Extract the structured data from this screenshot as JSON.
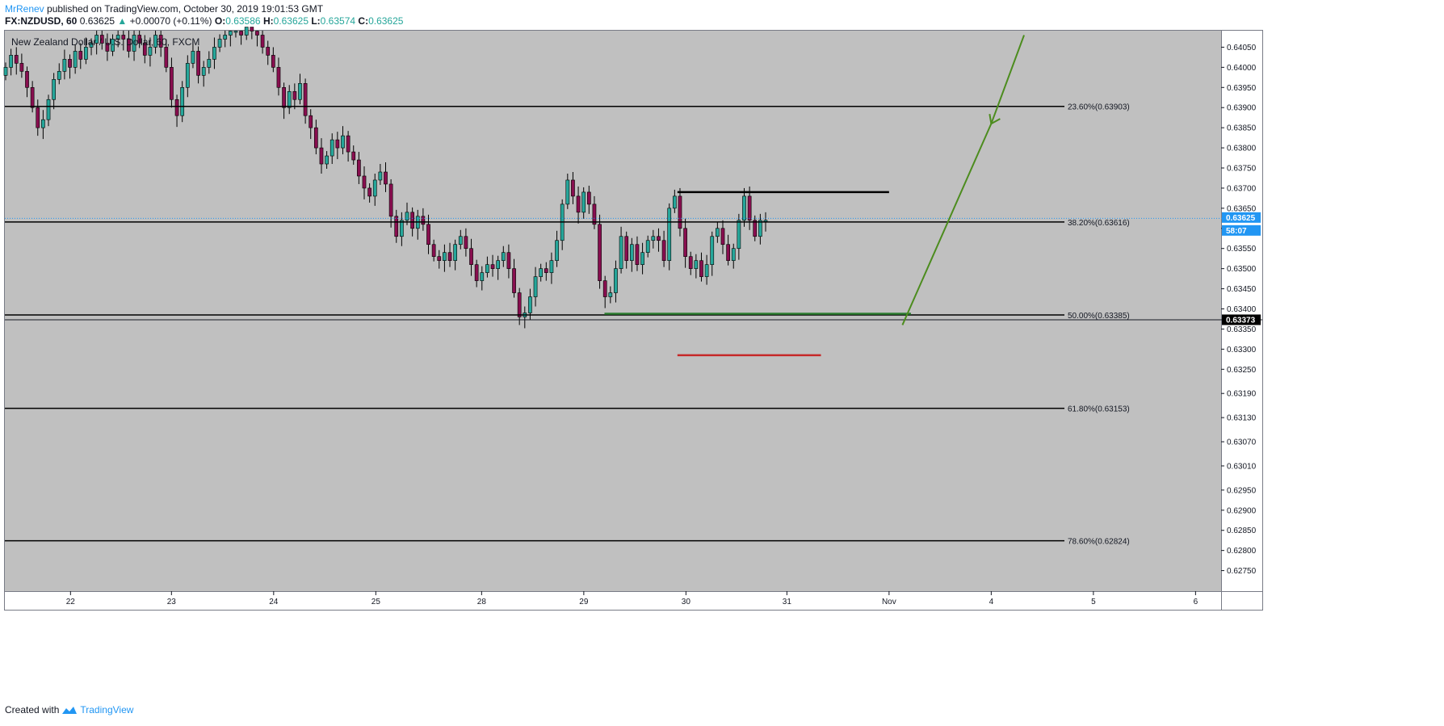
{
  "header": {
    "author": "MrRenev",
    "published": "published on TradingView.com, October 30, 2019 19:01:53 GMT",
    "symbol": "FX:NZDUSD, 60",
    "last": "0.63625",
    "change_arrow": "▲",
    "change": "+0.00070 (+0.11%)",
    "o_label": "O:",
    "o": "0.63586",
    "h_label": "H:",
    "h": "0.63625",
    "l_label": "L:",
    "l": "0.63574",
    "c_label": "C:",
    "c": "0.63625"
  },
  "legend_title": "New Zealand Dollar / U.S. Dollar, 60, FXCM",
  "footer": {
    "created_with": "Created with",
    "brand": "TradingView",
    "logo_icon": "tradingview-logo-icon"
  },
  "colors": {
    "background": "#c0c0c0",
    "up": "#26a69a",
    "down": "#880e4f",
    "fib": "#000000",
    "resistance": "#000000",
    "support": "#2e7d32",
    "stop": "#c62828",
    "projection": "#4c8c1e",
    "price_tag": "#2196f3"
  },
  "chart_data": {
    "type": "candlestick",
    "title": "New Zealand Dollar / U.S. Dollar, 60, FXCM",
    "ylim": [
      0.627,
      0.6409
    ],
    "x_ticks": [
      "22",
      "23",
      "24",
      "25",
      "28",
      "29",
      "30",
      "31",
      "Nov",
      "4",
      "5",
      "6"
    ],
    "y_ticks": [
      "0.64050",
      "0.64000",
      "0.63950",
      "0.63900",
      "0.63850",
      "0.63800",
      "0.63750",
      "0.63700",
      "0.63650",
      "0.63600",
      "0.63550",
      "0.63500",
      "0.63450",
      "0.63400",
      "0.63350",
      "0.63300",
      "0.63250",
      "0.63190",
      "0.63130",
      "0.63070",
      "0.63010",
      "0.62950",
      "0.62900",
      "0.62850",
      "0.62800",
      "0.62750"
    ],
    "fib_levels": [
      {
        "label": "23.60%(0.63903)",
        "value": 0.63903
      },
      {
        "label": "38.20%(0.63616)",
        "value": 0.63616
      },
      {
        "label": "50.00%(0.63385)",
        "value": 0.63385
      },
      {
        "label": "61.80%(0.63153)",
        "value": 0.63153
      },
      {
        "label": "78.60%(0.62824)",
        "value": 0.62824
      }
    ],
    "resistance": {
      "value": 0.6369,
      "from": "30",
      "to": "Nov"
    },
    "support": {
      "value": 0.63388,
      "from": "29",
      "to": "Nov"
    },
    "stop": {
      "value": 0.63285,
      "from": "30",
      "to": "31"
    },
    "projection": [
      {
        "x": 0.738,
        "y": 0.6336
      },
      {
        "x": 0.811,
        "y": 0.6386
      },
      {
        "x": 0.838,
        "y": 0.6408
      }
    ],
    "last_price": {
      "value": 0.63625,
      "label": "0.63625",
      "countdown": "58:07"
    },
    "crosshair_price": {
      "value": 0.63373,
      "label": "0.63373"
    },
    "candles_close": [
      0.64,
      0.6403,
      0.6401,
      0.6399,
      0.6395,
      0.639,
      0.6385,
      0.6387,
      0.6392,
      0.6397,
      0.6399,
      0.6402,
      0.64,
      0.6404,
      0.6402,
      0.6405,
      0.6406,
      0.6408,
      0.6406,
      0.6404,
      0.6407,
      0.6408,
      0.6407,
      0.6404,
      0.6408,
      0.6406,
      0.6403,
      0.6405,
      0.6408,
      0.6405,
      0.64,
      0.6392,
      0.6388,
      0.6395,
      0.6401,
      0.6404,
      0.6398,
      0.64,
      0.6402,
      0.6405,
      0.6407,
      0.6408,
      0.6409,
      0.6409,
      0.6408,
      0.641,
      0.6409,
      0.6408,
      0.6405,
      0.6403,
      0.64,
      0.6395,
      0.639,
      0.6394,
      0.6392,
      0.6396,
      0.6388,
      0.6385,
      0.638,
      0.6376,
      0.6378,
      0.6382,
      0.638,
      0.6383,
      0.6379,
      0.6377,
      0.6373,
      0.637,
      0.6368,
      0.6372,
      0.6374,
      0.6371,
      0.6363,
      0.6358,
      0.6362,
      0.6364,
      0.636,
      0.6363,
      0.6361,
      0.6356,
      0.6353,
      0.6352,
      0.6354,
      0.6352,
      0.6356,
      0.6358,
      0.6355,
      0.6351,
      0.6347,
      0.6349,
      0.6351,
      0.635,
      0.6352,
      0.6354,
      0.635,
      0.6344,
      0.6338,
      0.6339,
      0.6343,
      0.6348,
      0.635,
      0.6349,
      0.6352,
      0.6357,
      0.6366,
      0.6372,
      0.6368,
      0.6364,
      0.6369,
      0.6366,
      0.6361,
      0.6347,
      0.6343,
      0.6344,
      0.635,
      0.6358,
      0.6352,
      0.6356,
      0.6351,
      0.6354,
      0.6357,
      0.6358,
      0.6357,
      0.6352,
      0.6365,
      0.6368,
      0.636,
      0.6353,
      0.635,
      0.6352,
      0.6348,
      0.6351,
      0.6358,
      0.636,
      0.6356,
      0.6352,
      0.6355,
      0.6362,
      0.6368,
      0.6362,
      0.6358,
      0.6362,
      0.6362
    ]
  },
  "icons": {
    "logo": "tradingview-logo-icon"
  }
}
